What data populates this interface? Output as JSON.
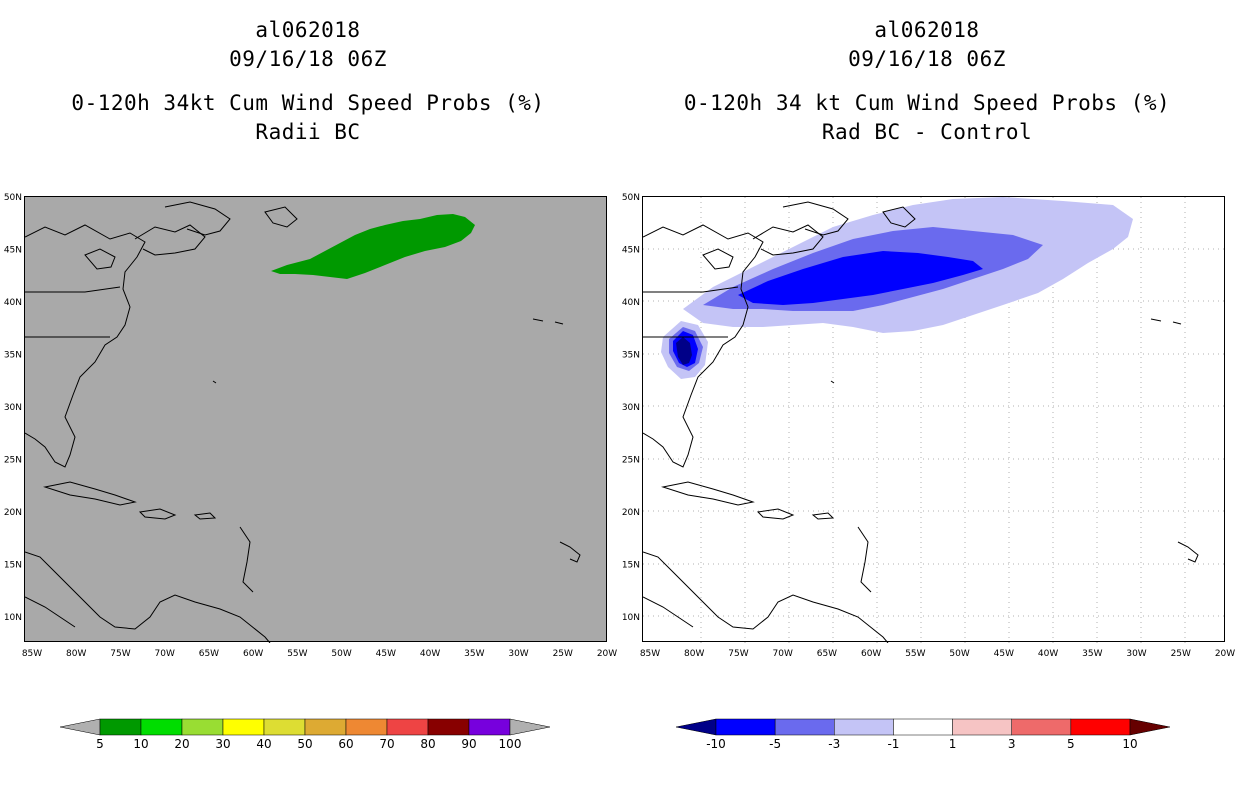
{
  "left_panel": {
    "storm_id": "al062018",
    "datetime": "09/16/18 06Z",
    "product": "0-120h 34kt Cum Wind Speed Probs (%)",
    "variant": "Radii BC"
  },
  "right_panel": {
    "storm_id": "al062018",
    "datetime": "09/16/18 06Z",
    "product": "0-120h 34 kt Cum Wind Speed Probs (%)",
    "variant": "Rad BC - Control"
  },
  "map_axes": {
    "lat_labels": [
      "50N",
      "45N",
      "40N",
      "35N",
      "30N",
      "25N",
      "20N",
      "15N",
      "10N"
    ],
    "lon_labels": [
      "85W",
      "80W",
      "75W",
      "70W",
      "65W",
      "60W",
      "55W",
      "50W",
      "45W",
      "40W",
      "35W",
      "30W",
      "25W",
      "20W"
    ]
  },
  "left_colorbar": {
    "labels": [
      "5",
      "10",
      "20",
      "30",
      "40",
      "50",
      "60",
      "70",
      "80",
      "90",
      "100"
    ],
    "colors": [
      "#009900",
      "#00dd00",
      "#99dd33",
      "#ffff00",
      "#dddd33",
      "#ddaa33",
      "#ee8833",
      "#ee4444",
      "#880000",
      "#7700dd"
    ],
    "end_low": "#b0b0b0",
    "end_high": "#b0b0b0"
  },
  "right_colorbar": {
    "labels": [
      "-10",
      "-5",
      "-3",
      "-1",
      "1",
      "3",
      "5",
      "10"
    ],
    "colors": [
      "#0000ff",
      "#6a6aee",
      "#c4c4f6",
      "#ffffff",
      "#f6c4c4",
      "#ee6a6a",
      "#ff0000"
    ],
    "end_low": "#000088",
    "end_high": "#660000"
  },
  "map_colors": {
    "ocean_left": "#a9a9a9",
    "probability_swath": "#009900",
    "diff_light": "#c4c4f6",
    "diff_mid": "#6a6aee",
    "diff_strong": "#0000ff",
    "diff_darkest": "#000088"
  }
}
